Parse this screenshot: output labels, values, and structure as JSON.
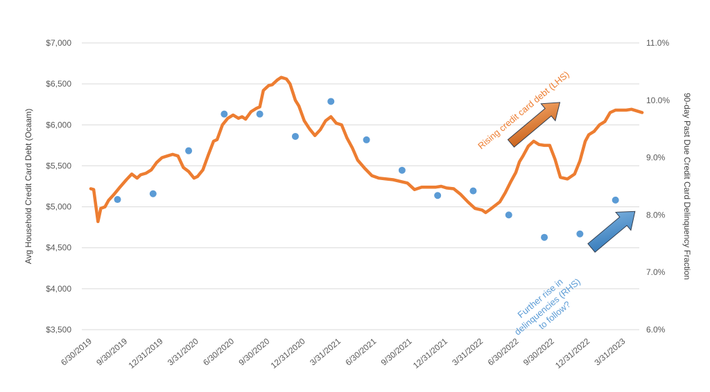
{
  "chart_data": {
    "type": "line",
    "title": "",
    "ylabel_left": "Avg Household Credit Card Debt (Ocaam)",
    "ylabel_right": "90-day Past Due Credit Card Delinquency Fraction",
    "ylim_left": [
      3500,
      7000
    ],
    "ylim_right": [
      6.0,
      11.0
    ],
    "left_ticks": [
      "$3,500",
      "$4,000",
      "$4,500",
      "$5,000",
      "$5,500",
      "$6,000",
      "$6,500",
      "$7,000"
    ],
    "right_ticks": [
      "6.0%",
      "7.0%",
      "8.0%",
      "9.0%",
      "10.0%",
      "11.0%"
    ],
    "x_tick_labels": [
      "6/30/2019",
      "9/30/2019",
      "12/31/2019",
      "3/31/2020",
      "6/30/2020",
      "9/30/2020",
      "12/31/2020",
      "3/31/2021",
      "6/30/2021",
      "9/30/2021",
      "12/31/2021",
      "3/31/2022",
      "6/30/2022",
      "9/30/2022",
      "12/31/2022",
      "3/31/2023"
    ],
    "grid": true,
    "colors": {
      "debt_line": "#ED7D31",
      "delinquency": "#5B9BD5",
      "grid": "#D9D9D9",
      "axis_text": "#595959"
    },
    "series": [
      {
        "axis": "left",
        "x": [
          0,
          0.08,
          0.2,
          0.28,
          0.4,
          0.5,
          0.65,
          0.8,
          1.0,
          1.15,
          1.3,
          1.4,
          1.55,
          1.7,
          1.85,
          2.0,
          2.15,
          2.3,
          2.45,
          2.6,
          2.75,
          2.9,
          3.0,
          3.15,
          3.3,
          3.45,
          3.55,
          3.7,
          3.85,
          4.0,
          4.15,
          4.25,
          4.35,
          4.5,
          4.65,
          4.75,
          4.85,
          5.0,
          5.1,
          5.25,
          5.35,
          5.5,
          5.6,
          5.75,
          5.85,
          6.0,
          6.15,
          6.3,
          6.45,
          6.6,
          6.75,
          6.9,
          7.05,
          7.2,
          7.35,
          7.5,
          7.7,
          7.9,
          8.1,
          8.3,
          8.5,
          8.7,
          8.9,
          9.1,
          9.3,
          9.5,
          9.7,
          9.85,
          10.0,
          10.2,
          10.4,
          10.6,
          10.8,
          11.0,
          11.1,
          11.2,
          11.35,
          11.5,
          11.65,
          11.8,
          11.95,
          12.05,
          12.15,
          12.3,
          12.45,
          12.6,
          12.75,
          12.9,
          13.05,
          13.2,
          13.4,
          13.6,
          13.75,
          13.9,
          14.0,
          14.15,
          14.3,
          14.45,
          14.6,
          14.75,
          14.9,
          15.05,
          15.2,
          15.35,
          15.5
        ],
        "values": [
          5220,
          5210,
          4820,
          4980,
          5000,
          5080,
          5150,
          5230,
          5330,
          5400,
          5350,
          5390,
          5410,
          5450,
          5540,
          5600,
          5620,
          5640,
          5620,
          5480,
          5430,
          5350,
          5370,
          5450,
          5630,
          5800,
          5820,
          6000,
          6080,
          6120,
          6080,
          6100,
          6070,
          6160,
          6200,
          6220,
          6420,
          6480,
          6490,
          6550,
          6580,
          6560,
          6500,
          6300,
          6230,
          6050,
          5950,
          5870,
          5940,
          6050,
          6100,
          6020,
          6000,
          5840,
          5720,
          5570,
          5470,
          5380,
          5350,
          5340,
          5330,
          5310,
          5290,
          5210,
          5240,
          5240,
          5240,
          5250,
          5230,
          5220,
          5150,
          5060,
          4980,
          4960,
          4930,
          4960,
          5010,
          5060,
          5170,
          5300,
          5420,
          5550,
          5620,
          5740,
          5800,
          5760,
          5750,
          5750,
          5580,
          5360,
          5340,
          5400,
          5560,
          5800,
          5880,
          5920,
          6000,
          6040,
          6150,
          6180,
          6180,
          6180,
          6190,
          6170,
          6150
        ]
      },
      {
        "axis": "right",
        "x": [
          0.75,
          1.75,
          2.75,
          3.75,
          4.75,
          5.75,
          6.75,
          7.75,
          8.75,
          9.75,
          10.75,
          11.75,
          12.75,
          13.75,
          14.75
        ],
        "values": [
          8.27,
          8.37,
          9.12,
          9.76,
          9.76,
          9.37,
          9.98,
          9.31,
          8.78,
          8.34,
          8.42,
          8.0,
          7.61,
          7.67,
          8.26
        ]
      }
    ]
  },
  "annotations": {
    "lhs_arrow_text": "Rising credit card debt (LHS)",
    "rhs_arrow_text_lines": [
      "Further rise in",
      "delinquencies (RHS)",
      "to follow?"
    ]
  }
}
